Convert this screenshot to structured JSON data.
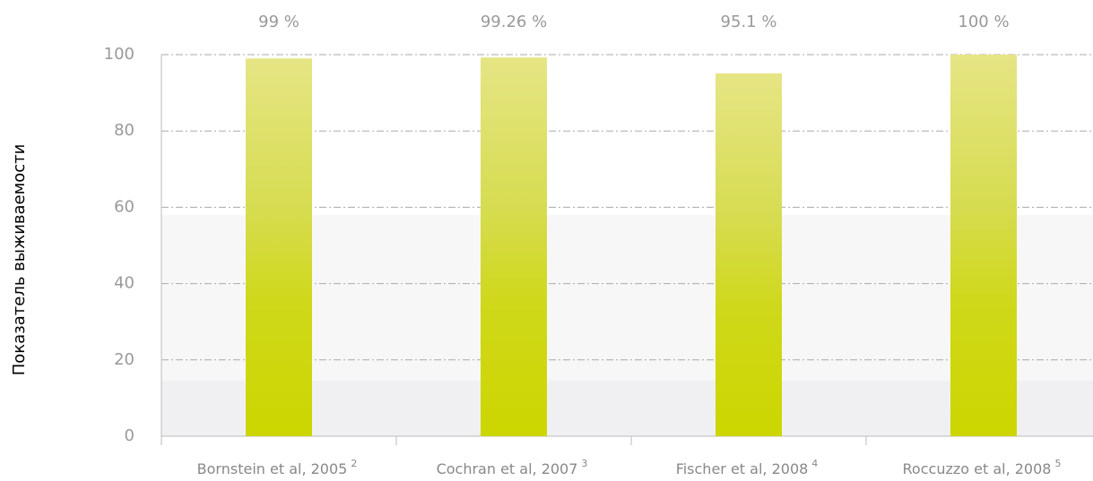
{
  "chart_data": {
    "type": "bar",
    "y_label": "Показатель выживаемости",
    "categories": [
      "Bornstein et al, 2005",
      "Cochran et al, 2007",
      "Fischer et al, 2008",
      "Roccuzzo et al, 2008"
    ],
    "footnotes": [
      "2",
      "3",
      "4",
      "5"
    ],
    "values": [
      99,
      99.26,
      95.1,
      100
    ],
    "value_labels": [
      "99 %",
      "99.26 %",
      "95.1 %",
      "100 %"
    ],
    "color": "#ccd600",
    "ylim": [
      0,
      100
    ],
    "yticks": [
      0,
      20,
      40,
      60,
      80,
      100
    ],
    "grid": true
  }
}
